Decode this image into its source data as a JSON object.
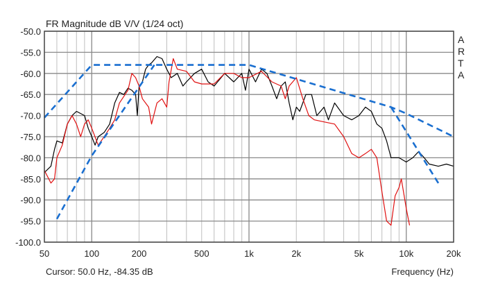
{
  "chart_data": {
    "type": "line",
    "title": "FR Magnitude dB V/V (1/24 oct)",
    "xlabel": "Frequency (Hz)",
    "ylabel": "",
    "xscale": "log",
    "xlim": [
      50,
      20000
    ],
    "ylim": [
      -100,
      -50
    ],
    "grid": true,
    "side_label": [
      "A",
      "R",
      "T",
      "A"
    ],
    "cursor_readout": "Cursor: 50.0 Hz, -84.35 dB",
    "x_ticks": [
      {
        "value": 50,
        "label": "50"
      },
      {
        "value": 100,
        "label": "100"
      },
      {
        "value": 200,
        "label": "200"
      },
      {
        "value": 500,
        "label": "500"
      },
      {
        "value": 1000,
        "label": "1k"
      },
      {
        "value": 2000,
        "label": "2k"
      },
      {
        "value": 5000,
        "label": "5k"
      },
      {
        "value": 10000,
        "label": "10k"
      },
      {
        "value": 20000,
        "label": "20k"
      }
    ],
    "y_ticks": [
      {
        "value": -50,
        "label": "-50.0"
      },
      {
        "value": -55,
        "label": "-55.0"
      },
      {
        "value": -60,
        "label": "-60.0"
      },
      {
        "value": -65,
        "label": "-65.0"
      },
      {
        "value": -70,
        "label": "-70.0"
      },
      {
        "value": -75,
        "label": "-75.0"
      },
      {
        "value": -80,
        "label": "-80.0"
      },
      {
        "value": -85,
        "label": "-85.0"
      },
      {
        "value": -90,
        "label": "-90.0"
      },
      {
        "value": -95,
        "label": "-95.0"
      },
      {
        "value": -100,
        "label": "-100.0"
      }
    ],
    "series": [
      {
        "name": "black",
        "color": "#000000",
        "style": "solid",
        "x": [
          50,
          55,
          58,
          60,
          65,
          70,
          75,
          80,
          85,
          90,
          95,
          100,
          105,
          110,
          120,
          130,
          140,
          150,
          160,
          170,
          180,
          190,
          195,
          200,
          210,
          220,
          230,
          240,
          260,
          280,
          300,
          320,
          350,
          380,
          400,
          450,
          500,
          550,
          600,
          700,
          800,
          900,
          950,
          1000,
          1100,
          1200,
          1300,
          1400,
          1500,
          1600,
          1700,
          1800,
          1900,
          2000,
          2100,
          2300,
          2500,
          2700,
          3000,
          3200,
          3500,
          4000,
          4500,
          5000,
          5500,
          6000,
          6500,
          7000,
          7500,
          8000,
          9000,
          10000,
          11000,
          12000,
          13000,
          14000,
          16000,
          18000,
          20000
        ],
        "y": [
          -83.5,
          -82,
          -78,
          -76,
          -76.5,
          -72,
          -70,
          -69,
          -69.5,
          -70,
          -73,
          -75,
          -77,
          -75,
          -74,
          -72,
          -67,
          -64.5,
          -65,
          -63.5,
          -64,
          -65,
          -70,
          -63,
          -62,
          -59,
          -58,
          -57.5,
          -56,
          -56.5,
          -59,
          -61,
          -60,
          -63,
          -62,
          -60,
          -59,
          -62,
          -63,
          -60,
          -62,
          -60,
          -64,
          -59,
          -62,
          -59,
          -60,
          -63,
          -66,
          -63,
          -62,
          -67,
          -71,
          -68,
          -69,
          -65,
          -65,
          -70,
          -68,
          -71,
          -67,
          -70,
          -71,
          -70,
          -68,
          -69,
          -72,
          -73,
          -76,
          -80,
          -80,
          -81,
          -80,
          -78.5,
          -80,
          -81.5,
          -82,
          -81.5,
          -82
        ]
      },
      {
        "name": "red",
        "color": "#e01010",
        "style": "solid",
        "x": [
          50,
          55,
          58,
          60,
          65,
          70,
          75,
          80,
          85,
          90,
          95,
          100,
          110,
          120,
          130,
          140,
          150,
          170,
          180,
          190,
          200,
          210,
          230,
          240,
          260,
          280,
          300,
          310,
          330,
          350,
          400,
          450,
          500,
          600,
          700,
          800,
          900,
          1000,
          1200,
          1400,
          1600,
          1700,
          1800,
          2000,
          2200,
          2400,
          2600,
          3000,
          3500,
          4000,
          4500,
          5000,
          5500,
          6000,
          6500,
          7000,
          7500,
          8000,
          8500,
          9000,
          9300,
          9700,
          10000,
          10500
        ],
        "y": [
          -83,
          -86,
          -85,
          -80,
          -77,
          -72,
          -70,
          -72,
          -75,
          -72,
          -71,
          -73,
          -77,
          -75,
          -73,
          -71,
          -67,
          -64,
          -60,
          -61,
          -63,
          -66,
          -68,
          -72,
          -67,
          -66,
          -68,
          -62,
          -56.5,
          -59,
          -59.5,
          -62,
          -62.5,
          -62.5,
          -60,
          -60,
          -61,
          -61,
          -59.5,
          -62,
          -63,
          -66,
          -63,
          -61,
          -66,
          -70,
          -71,
          -71.5,
          -72,
          -75,
          -79,
          -80,
          -79,
          -78,
          -80,
          -88,
          -95,
          -96,
          -89,
          -87,
          -85,
          -89,
          -92,
          -96
        ]
      },
      {
        "name": "target-upper",
        "color": "#1a6fd0",
        "style": "dashed",
        "x": [
          50,
          100,
          1000,
          8000,
          10000,
          20000
        ],
        "y": [
          -70.5,
          -58,
          -58,
          -68,
          -69.5,
          -75
        ]
      },
      {
        "name": "target-highpass",
        "color": "#1a6fd0",
        "style": "dashed",
        "x": [
          60,
          100,
          250
        ],
        "y": [
          -94.5,
          -79.5,
          -58
        ]
      },
      {
        "name": "target-lowpass",
        "color": "#1a6fd0",
        "style": "dashed",
        "x": [
          8000,
          16000
        ],
        "y": [
          -68,
          -86
        ]
      }
    ]
  }
}
